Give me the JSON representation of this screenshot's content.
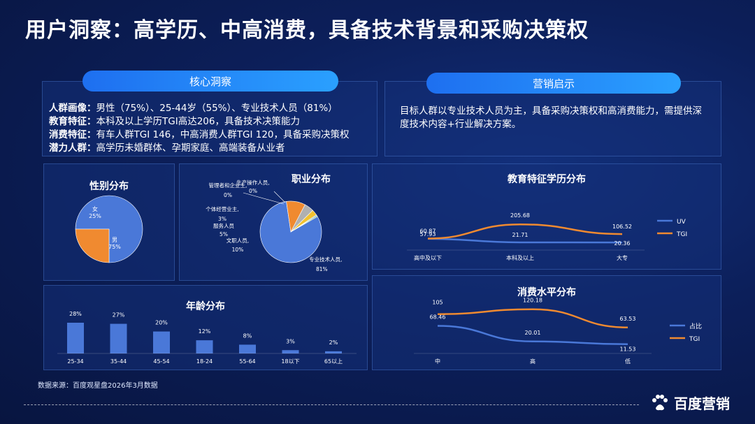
{
  "page_title": "用户洞察：高学历、中高消费，具备技术背景和采购决策权",
  "core_insight": {
    "header": "核心洞察",
    "lines": [
      {
        "label": "人群画像：",
        "text": "男性（75%）、25-44岁（55%）、专业技术人员（81%）"
      },
      {
        "label": "教育特征：",
        "text": "本科及以上学历TGI高达206，具备技术决策能力"
      },
      {
        "label": "消费特征：",
        "text": "有车人群TGI 146，中高消费人群TGI 120，具备采购决策权"
      },
      {
        "label": "潜力人群：",
        "text": "高学历未婚群体、孕期家庭、高端装备从业者"
      }
    ]
  },
  "marketing": {
    "header": "营销启示",
    "text": "目标人群以专业技术人员为主，具备采购决策权和高消费能力，需提供深度技术内容+行业解决方案。"
  },
  "footer": {
    "source": "数据来源：百度观星盘2026年3月数据",
    "brand": "百度营销"
  },
  "colors": {
    "blue": "#4a78d8",
    "orange": "#f08a30",
    "accent": "#2aa0ff"
  },
  "chart_data": [
    {
      "type": "pie",
      "title": "性别分布",
      "slices": [
        {
          "label": "男",
          "pct_label": "75%",
          "value": 75,
          "color": "#4a78d8"
        },
        {
          "label": "女",
          "pct_label": "25%",
          "value": 25,
          "color": "#f08a30"
        }
      ]
    },
    {
      "type": "pie",
      "title": "职业分布",
      "slices": [
        {
          "label": "专业技术人员,",
          "pct_label": "81%",
          "value": 81,
          "color": "#4a78d8"
        },
        {
          "label": "文职人员,",
          "pct_label": "10%",
          "value": 10,
          "color": "#f08a30"
        },
        {
          "label": "服务人员",
          "pct_label": "5%",
          "value": 5,
          "color": "#b0b0b0"
        },
        {
          "label": "个体经营业主,",
          "pct_label": "3%",
          "value": 3,
          "color": "#f2c230"
        },
        {
          "label": "管理者和企业主,",
          "pct_label": "0%",
          "value": 0.5,
          "color": "#5aa0e8"
        },
        {
          "label": "生产操作人员,",
          "pct_label": "0%",
          "value": 0.5,
          "color": "#6ab04c"
        }
      ]
    },
    {
      "type": "bar",
      "title": "年龄分布",
      "categories": [
        "25-34",
        "35-44",
        "45-54",
        "18-24",
        "55-64",
        "18以下",
        "65以上"
      ],
      "values": [
        28,
        27,
        20,
        12,
        8,
        3,
        2
      ],
      "value_labels": [
        "28%",
        "27%",
        "20%",
        "12%",
        "8%",
        "3%",
        "2%"
      ]
    },
    {
      "type": "line",
      "title": "教育特征学历分布",
      "categories": [
        "高中及以下",
        "本科及以上",
        "大专"
      ],
      "series": [
        {
          "name": "UV",
          "values": [
            57.93,
            21.71,
            20.36
          ],
          "labels": [
            "57.93",
            "21.71",
            "20.36"
          ],
          "color": "#4a78d8"
        },
        {
          "name": "TGI",
          "values": [
            60.87,
            205.68,
            106.52
          ],
          "labels": [
            "60.87",
            "205.68",
            "106.52"
          ],
          "color": "#f08a30"
        }
      ]
    },
    {
      "type": "line",
      "title": "消费水平分布",
      "categories": [
        "中",
        "高",
        "低"
      ],
      "series": [
        {
          "name": "占比",
          "values": [
            68.46,
            20.01,
            11.53
          ],
          "labels": [
            "68.46",
            "20.01",
            "11.53"
          ],
          "color": "#4a78d8"
        },
        {
          "name": "TGI",
          "values": [
            105,
            120.18,
            63.53
          ],
          "labels": [
            "105",
            "120.18",
            "63.53"
          ],
          "color": "#f08a30"
        }
      ]
    }
  ]
}
